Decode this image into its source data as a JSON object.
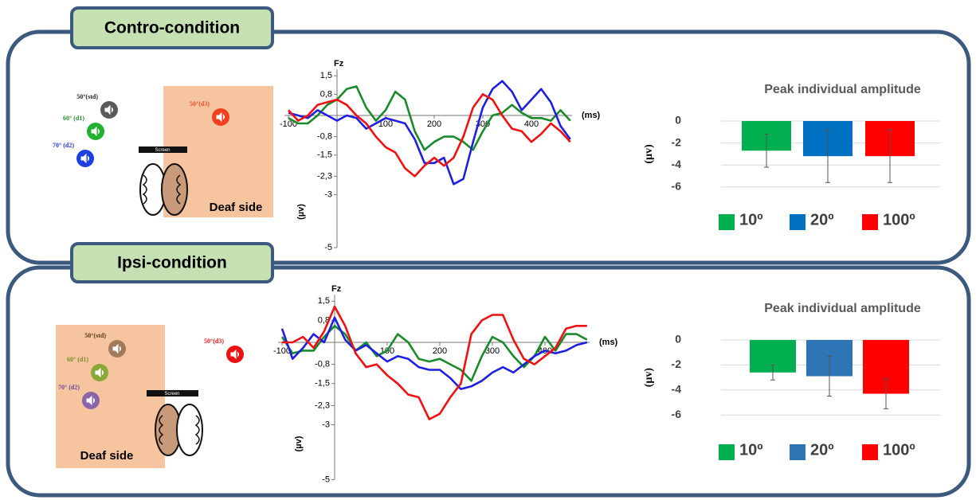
{
  "panels": [
    {
      "title": "Contro-condition",
      "sources": [
        "50°(std)",
        "60° (d1)",
        "70° (d2)",
        "50°(d3)"
      ],
      "screen": "Screen",
      "side": "Deaf side"
    },
    {
      "title": "Ipsi-condition",
      "sources": [
        "50°(std)",
        "60° (d1)",
        "70° (d2)",
        "50°(d3)"
      ],
      "screen": "Screen",
      "side": "Deaf side"
    }
  ],
  "chart_data": [
    {
      "type": "line",
      "channel": "Fz",
      "x_label": "(ms)",
      "y_label": "(µv)",
      "x": [
        -100,
        -80,
        -60,
        -40,
        -20,
        0,
        20,
        40,
        60,
        80,
        100,
        120,
        140,
        160,
        180,
        200,
        220,
        240,
        260,
        280,
        300,
        320,
        340,
        360,
        380,
        400,
        420,
        440,
        460,
        480
      ],
      "xlim": [
        -100,
        500
      ],
      "xticks": [
        -100,
        100,
        200,
        300,
        400
      ],
      "ylim": [
        -5,
        1.5
      ],
      "yticks": [
        {
          "value": 1.5,
          "label": "1,5"
        },
        {
          "value": 0.8,
          "label": "0,8"
        },
        {
          "value": -0.8,
          "label": "-0,8"
        },
        {
          "value": -1.5,
          "label": "-1,5"
        },
        {
          "value": -2.3,
          "label": "-2,3"
        },
        -3,
        -5
      ],
      "series": [
        {
          "color": "#1a8a2a",
          "values": [
            -0.1,
            -0.3,
            -0.3,
            0.0,
            0.4,
            0.6,
            1.0,
            1.1,
            0.3,
            -0.2,
            0.2,
            0.9,
            0.6,
            -0.6,
            -1.3,
            -1.0,
            -0.8,
            -0.8,
            -1.0,
            -1.3,
            -0.6,
            0.0,
            0.1,
            0.4,
            0.1,
            -0.1,
            -0.1,
            -0.2,
            0.2,
            -0.2
          ]
        },
        {
          "color": "#1f1fe0",
          "values": [
            0.1,
            0.0,
            -0.1,
            0.2,
            0.0,
            -0.2,
            0.0,
            -0.1,
            -0.5,
            -0.3,
            -0.1,
            -0.2,
            -0.3,
            -0.9,
            -1.8,
            -1.8,
            -1.6,
            -2.6,
            -2.4,
            -1.0,
            0.3,
            1.0,
            1.3,
            0.9,
            0.2,
            0.6,
            1.0,
            0.5,
            -0.4,
            -0.9
          ]
        },
        {
          "color": "#ee1111",
          "values": [
            0.2,
            -0.2,
            0.0,
            0.4,
            0.5,
            0.6,
            0.4,
            0.0,
            -0.3,
            -0.8,
            -1.2,
            -1.4,
            -2.0,
            -2.3,
            -1.9,
            -1.6,
            -1.9,
            -1.6,
            -0.8,
            0.3,
            0.8,
            0.6,
            0.0,
            -0.5,
            -0.6,
            -1.0,
            -0.7,
            -0.3,
            -0.6,
            -1.0
          ]
        }
      ]
    },
    {
      "type": "bar",
      "title": "Peak individual amplitude",
      "y_label": "(µv)",
      "ylim": [
        -6,
        0.8
      ],
      "yticks": [
        0,
        -2,
        -4,
        -6
      ],
      "grid": true,
      "series": [
        {
          "name": "10º",
          "color": "#00b050",
          "values": [
            -2.7
          ],
          "errors": [
            1.5
          ]
        },
        {
          "name": "20º",
          "color": "#0070c0",
          "values": [
            -3.2
          ],
          "errors": [
            2.4
          ]
        },
        {
          "name": "100º",
          "color": "#ff0000",
          "values": [
            -3.2
          ],
          "errors": [
            2.4
          ]
        }
      ]
    },
    {
      "type": "line",
      "channel": "Fz",
      "x_label": "(ms)",
      "y_label": "(µv)",
      "x": [
        -100,
        -80,
        -60,
        -40,
        -20,
        0,
        20,
        40,
        60,
        80,
        100,
        120,
        140,
        160,
        180,
        200,
        220,
        240,
        260,
        280,
        300,
        320,
        340,
        360,
        380,
        400,
        420,
        440,
        460,
        480
      ],
      "xlim": [
        -100,
        500
      ],
      "xticks": [
        -100,
        100,
        200,
        300,
        400
      ],
      "ylim": [
        -5,
        1.5
      ],
      "yticks": [
        {
          "value": 1.5,
          "label": "1,5"
        },
        {
          "value": 0.8,
          "label": "0,8"
        },
        {
          "value": -0.8,
          "label": "-0,8"
        },
        {
          "value": -1.5,
          "label": "-1,5"
        },
        {
          "value": -2.3,
          "label": "-2,3"
        },
        -3,
        -5
      ],
      "series": [
        {
          "color": "#1a8a2a",
          "values": [
            0.2,
            -0.4,
            -0.3,
            -0.3,
            0.2,
            0.6,
            0.3,
            -0.3,
            0.0,
            -0.5,
            -0.3,
            0.3,
            0.0,
            -0.6,
            -0.7,
            -0.6,
            -0.8,
            -1.0,
            -1.4,
            -0.5,
            0.2,
            0.0,
            -0.5,
            -0.9,
            -0.5,
            0.2,
            -0.3,
            0.3,
            0.3,
            0.1
          ]
        },
        {
          "color": "#1f1fe0",
          "values": [
            0.5,
            -0.6,
            -0.2,
            0.3,
            0.0,
            0.9,
            0.1,
            -0.3,
            -0.1,
            -0.4,
            -0.7,
            -0.5,
            -0.6,
            -0.9,
            -1.0,
            -1.0,
            -1.3,
            -1.7,
            -1.6,
            -1.4,
            -1.1,
            -0.9,
            -1.1,
            -0.8,
            -0.5,
            -0.3,
            -0.4,
            -0.3,
            -0.1,
            0.0
          ]
        },
        {
          "color": "#ee1111",
          "values": [
            0.0,
            0.0,
            0.2,
            -0.2,
            0.4,
            1.3,
            0.6,
            -0.4,
            -0.9,
            -0.8,
            -1.2,
            -1.5,
            -1.9,
            -2.0,
            -2.8,
            -2.6,
            -2.0,
            -1.5,
            0.3,
            0.8,
            1.0,
            1.0,
            0.1,
            -0.6,
            -0.8,
            -0.5,
            -0.2,
            0.5,
            0.6,
            0.6
          ]
        }
      ]
    },
    {
      "type": "bar",
      "title": "Peak individual amplitude",
      "y_label": "(µv)",
      "ylim": [
        -6,
        0.8
      ],
      "yticks": [
        0,
        -2,
        -4,
        -6
      ],
      "grid": true,
      "series": [
        {
          "name": "10º",
          "color": "#00b050",
          "values": [
            -2.6
          ],
          "errors": [
            0.6
          ]
        },
        {
          "name": "20º",
          "color": "#2e75b6",
          "values": [
            -2.9
          ],
          "errors": [
            1.6
          ]
        },
        {
          "name": "100º",
          "color": "#ff0000",
          "values": [
            -4.3
          ],
          "errors": [
            1.2
          ]
        }
      ]
    }
  ]
}
